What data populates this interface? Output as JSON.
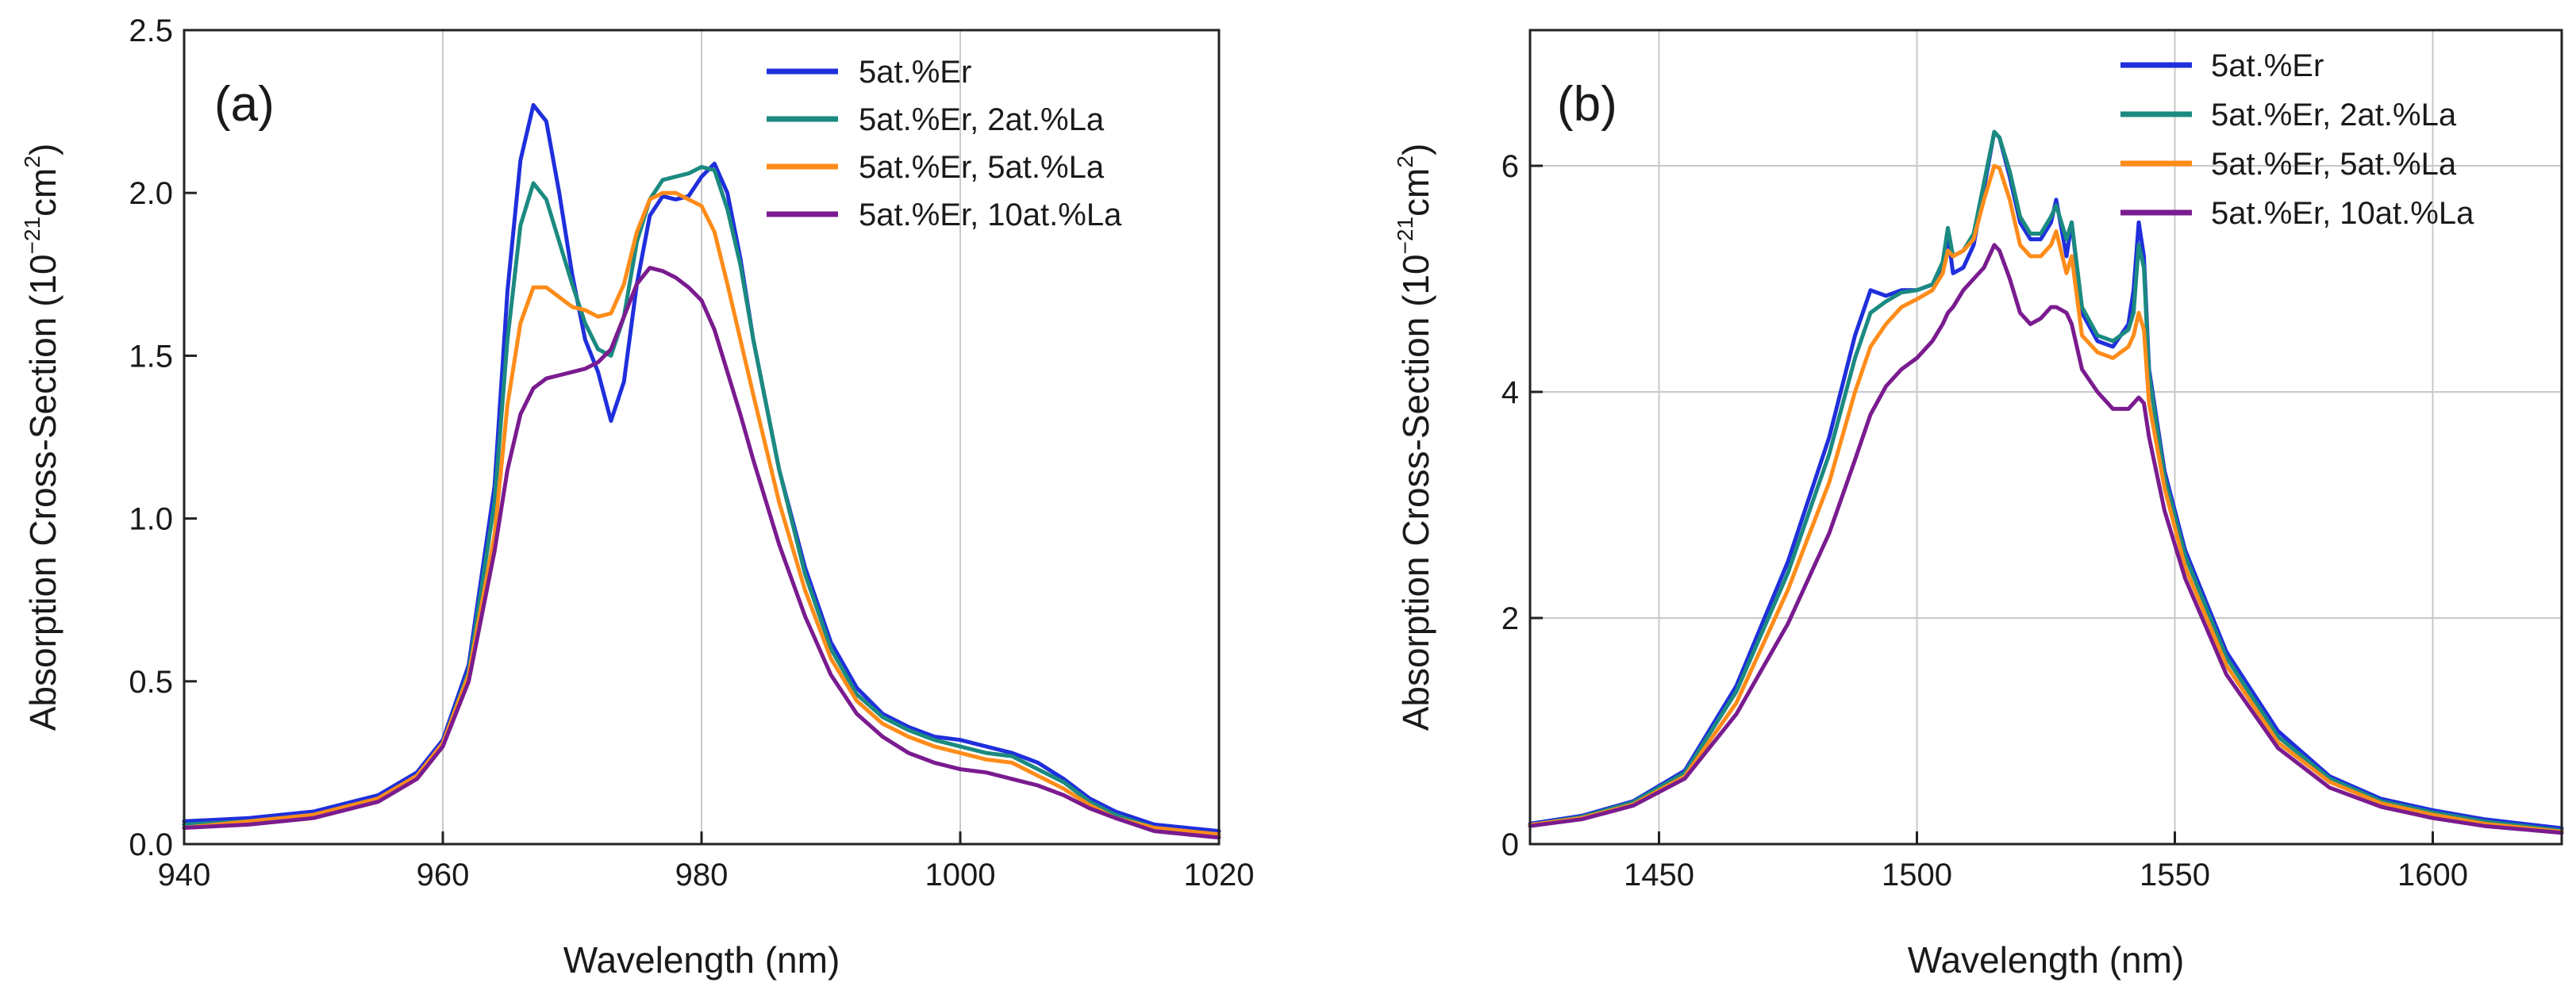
{
  "chart_data": [
    {
      "type": "line",
      "panel_label": "(a)",
      "xlabel": "Wavelength (nm)",
      "ylabel": {
        "prefix": "Absorption Cross-Section (10",
        "exponent": "−21",
        "unit": "cm",
        "unit_exponent": "2",
        "suffix": ")"
      },
      "xlim": [
        940,
        1020
      ],
      "ylim": [
        0,
        2.5
      ],
      "xticks": [
        940,
        960,
        980,
        1000,
        1020
      ],
      "xtick_labels": [
        "940",
        "960",
        "980",
        "1000",
        "1020"
      ],
      "yticks": [
        0,
        0.5,
        1.0,
        1.5,
        2.0,
        2.5
      ],
      "ytick_labels": [
        "0.0",
        "0.5",
        "1.0",
        "1.5",
        "2.0",
        "2.5"
      ],
      "grid": "vertical",
      "legend_position": "top-right",
      "series": [
        {
          "name": "5at.%Er",
          "color": "#1f2fdc",
          "x": [
            940,
            945,
            950,
            955,
            958,
            960,
            962,
            964,
            965,
            966,
            967,
            968,
            969,
            970,
            971,
            972,
            973,
            974,
            975,
            976,
            977,
            978,
            979,
            980,
            981,
            982,
            983,
            984,
            986,
            988,
            990,
            992,
            994,
            996,
            998,
            1000,
            1002,
            1004,
            1006,
            1008,
            1010,
            1012,
            1015,
            1020
          ],
          "y": [
            0.07,
            0.08,
            0.1,
            0.15,
            0.22,
            0.32,
            0.55,
            1.1,
            1.7,
            2.1,
            2.27,
            2.22,
            2.0,
            1.75,
            1.55,
            1.45,
            1.3,
            1.42,
            1.72,
            1.93,
            1.99,
            1.98,
            1.99,
            2.05,
            2.09,
            2.0,
            1.8,
            1.55,
            1.15,
            0.85,
            0.62,
            0.48,
            0.4,
            0.36,
            0.33,
            0.32,
            0.3,
            0.28,
            0.25,
            0.2,
            0.14,
            0.1,
            0.06,
            0.04
          ]
        },
        {
          "name": "5at.%Er, 2at.%La",
          "color": "#1b8a80",
          "x": [
            940,
            945,
            950,
            955,
            958,
            960,
            962,
            964,
            965,
            966,
            967,
            968,
            969,
            970,
            971,
            972,
            973,
            974,
            975,
            976,
            977,
            978,
            979,
            980,
            981,
            982,
            983,
            984,
            986,
            988,
            990,
            992,
            994,
            996,
            998,
            1000,
            1002,
            1004,
            1006,
            1008,
            1010,
            1012,
            1015,
            1020
          ],
          "y": [
            0.06,
            0.07,
            0.09,
            0.14,
            0.21,
            0.31,
            0.53,
            1.05,
            1.55,
            1.9,
            2.03,
            1.98,
            1.85,
            1.72,
            1.6,
            1.52,
            1.5,
            1.62,
            1.85,
            1.98,
            2.04,
            2.05,
            2.06,
            2.08,
            2.07,
            1.95,
            1.78,
            1.55,
            1.15,
            0.83,
            0.6,
            0.46,
            0.39,
            0.35,
            0.32,
            0.3,
            0.28,
            0.27,
            0.23,
            0.19,
            0.13,
            0.09,
            0.05,
            0.03
          ]
        },
        {
          "name": "5at.%Er, 5at.%La",
          "color": "#ff8c1a",
          "x": [
            940,
            945,
            950,
            955,
            958,
            960,
            962,
            964,
            965,
            966,
            967,
            968,
            969,
            970,
            971,
            972,
            973,
            974,
            975,
            976,
            977,
            978,
            979,
            980,
            981,
            982,
            983,
            984,
            986,
            988,
            990,
            992,
            994,
            996,
            998,
            1000,
            1002,
            1004,
            1006,
            1008,
            1010,
            1012,
            1015,
            1020
          ],
          "y": [
            0.05,
            0.07,
            0.09,
            0.14,
            0.21,
            0.31,
            0.52,
            0.95,
            1.35,
            1.6,
            1.71,
            1.71,
            1.68,
            1.65,
            1.64,
            1.62,
            1.63,
            1.72,
            1.88,
            1.98,
            2.0,
            2.0,
            1.98,
            1.96,
            1.88,
            1.72,
            1.55,
            1.38,
            1.05,
            0.78,
            0.57,
            0.44,
            0.37,
            0.33,
            0.3,
            0.28,
            0.26,
            0.25,
            0.21,
            0.17,
            0.12,
            0.08,
            0.05,
            0.03
          ]
        },
        {
          "name": "5at.%Er, 10at.%La",
          "color": "#7a1b8f",
          "x": [
            940,
            945,
            950,
            955,
            958,
            960,
            962,
            964,
            965,
            966,
            967,
            968,
            969,
            970,
            971,
            972,
            973,
            974,
            975,
            976,
            977,
            978,
            979,
            980,
            981,
            982,
            983,
            984,
            986,
            988,
            990,
            992,
            994,
            996,
            998,
            1000,
            1002,
            1004,
            1006,
            1008,
            1010,
            1012,
            1015,
            1020
          ],
          "y": [
            0.05,
            0.06,
            0.08,
            0.13,
            0.2,
            0.3,
            0.5,
            0.9,
            1.15,
            1.32,
            1.4,
            1.43,
            1.44,
            1.45,
            1.46,
            1.48,
            1.52,
            1.62,
            1.72,
            1.77,
            1.76,
            1.74,
            1.71,
            1.67,
            1.58,
            1.45,
            1.32,
            1.18,
            0.92,
            0.7,
            0.52,
            0.4,
            0.33,
            0.28,
            0.25,
            0.23,
            0.22,
            0.2,
            0.18,
            0.15,
            0.11,
            0.08,
            0.04,
            0.02
          ]
        }
      ]
    },
    {
      "type": "line",
      "panel_label": "(b)",
      "xlabel": "Wavelength (nm)",
      "ylabel": {
        "prefix": "Absorption Cross-Section (10",
        "exponent": "−21",
        "unit": "cm",
        "unit_exponent": "2",
        "suffix": ")"
      },
      "xlim": [
        1425,
        1625
      ],
      "ylim": [
        0,
        7.2
      ],
      "xticks": [
        1450,
        1500,
        1550,
        1600
      ],
      "xtick_labels": [
        "1450",
        "1500",
        "1550",
        "1600"
      ],
      "yticks": [
        0,
        2,
        4,
        6
      ],
      "ytick_labels": [
        "0",
        "2",
        "4",
        "6"
      ],
      "grid": "both",
      "legend_position": "top-right",
      "series": [
        {
          "name": "5at.%Er",
          "color": "#1f2fdc",
          "x": [
            1425,
            1435,
            1445,
            1455,
            1465,
            1475,
            1483,
            1488,
            1491,
            1494,
            1497,
            1500,
            1503,
            1505,
            1506,
            1507,
            1509,
            1511,
            1513,
            1515,
            1516,
            1518,
            1520,
            1522,
            1524,
            1526,
            1527,
            1529,
            1530,
            1532,
            1535,
            1538,
            1541,
            1542,
            1543,
            1544,
            1545,
            1548,
            1552,
            1560,
            1570,
            1580,
            1590,
            1600,
            1610,
            1625
          ],
          "y": [
            0.18,
            0.25,
            0.38,
            0.65,
            1.4,
            2.5,
            3.6,
            4.5,
            4.9,
            4.85,
            4.9,
            4.9,
            4.95,
            5.1,
            5.4,
            5.05,
            5.1,
            5.3,
            5.8,
            6.3,
            6.25,
            5.9,
            5.5,
            5.35,
            5.35,
            5.5,
            5.7,
            5.2,
            5.5,
            4.7,
            4.45,
            4.4,
            4.6,
            4.9,
            5.5,
            5.2,
            4.2,
            3.3,
            2.6,
            1.7,
            1.0,
            0.6,
            0.4,
            0.3,
            0.22,
            0.14
          ]
        },
        {
          "name": "5at.%Er, 2at.%La",
          "color": "#1b8a80",
          "x": [
            1425,
            1435,
            1445,
            1455,
            1465,
            1475,
            1483,
            1488,
            1491,
            1494,
            1497,
            1500,
            1503,
            1505,
            1506,
            1507,
            1509,
            1511,
            1513,
            1515,
            1516,
            1518,
            1520,
            1522,
            1524,
            1526,
            1527,
            1529,
            1530,
            1532,
            1535,
            1538,
            1541,
            1542,
            1543,
            1544,
            1545,
            1548,
            1552,
            1560,
            1570,
            1580,
            1590,
            1600,
            1610,
            1625
          ],
          "y": [
            0.17,
            0.24,
            0.37,
            0.63,
            1.35,
            2.4,
            3.45,
            4.3,
            4.7,
            4.8,
            4.88,
            4.9,
            4.95,
            5.15,
            5.45,
            5.2,
            5.25,
            5.4,
            5.85,
            6.3,
            6.25,
            5.95,
            5.55,
            5.4,
            5.4,
            5.55,
            5.65,
            5.35,
            5.5,
            4.75,
            4.5,
            4.45,
            4.55,
            4.7,
            5.3,
            5.1,
            4.15,
            3.25,
            2.55,
            1.65,
            0.95,
            0.58,
            0.38,
            0.28,
            0.2,
            0.12
          ]
        },
        {
          "name": "5at.%Er, 5at.%La",
          "color": "#ff8c1a",
          "x": [
            1425,
            1435,
            1445,
            1455,
            1465,
            1475,
            1483,
            1488,
            1491,
            1494,
            1497,
            1500,
            1503,
            1505,
            1506,
            1507,
            1509,
            1511,
            1513,
            1515,
            1516,
            1518,
            1520,
            1522,
            1524,
            1526,
            1527,
            1529,
            1530,
            1532,
            1535,
            1538,
            1541,
            1542,
            1543,
            1544,
            1545,
            1548,
            1552,
            1560,
            1570,
            1580,
            1590,
            1600,
            1610,
            1625
          ],
          "y": [
            0.17,
            0.23,
            0.35,
            0.6,
            1.25,
            2.25,
            3.2,
            4.0,
            4.4,
            4.6,
            4.75,
            4.82,
            4.9,
            5.05,
            5.25,
            5.2,
            5.25,
            5.35,
            5.7,
            6.0,
            5.98,
            5.7,
            5.3,
            5.2,
            5.2,
            5.3,
            5.42,
            5.05,
            5.2,
            4.5,
            4.35,
            4.3,
            4.4,
            4.5,
            4.7,
            4.55,
            3.9,
            3.15,
            2.45,
            1.58,
            0.9,
            0.55,
            0.36,
            0.26,
            0.18,
            0.11
          ]
        },
        {
          "name": "5at.%Er, 10at.%La",
          "color": "#7a1b8f",
          "x": [
            1425,
            1435,
            1445,
            1455,
            1465,
            1475,
            1483,
            1488,
            1491,
            1494,
            1497,
            1500,
            1503,
            1505,
            1506,
            1507,
            1509,
            1511,
            1513,
            1515,
            1516,
            1518,
            1520,
            1522,
            1524,
            1526,
            1527,
            1529,
            1530,
            1532,
            1535,
            1538,
            1541,
            1542,
            1543,
            1544,
            1545,
            1548,
            1552,
            1560,
            1570,
            1580,
            1590,
            1600,
            1610,
            1625
          ],
          "y": [
            0.16,
            0.22,
            0.34,
            0.58,
            1.15,
            1.95,
            2.75,
            3.4,
            3.8,
            4.05,
            4.2,
            4.3,
            4.45,
            4.6,
            4.7,
            4.75,
            4.9,
            5.0,
            5.1,
            5.3,
            5.25,
            5.0,
            4.7,
            4.6,
            4.65,
            4.75,
            4.75,
            4.7,
            4.6,
            4.2,
            4.0,
            3.85,
            3.85,
            3.9,
            3.95,
            3.9,
            3.6,
            2.95,
            2.35,
            1.5,
            0.85,
            0.5,
            0.33,
            0.23,
            0.16,
            0.1
          ]
        }
      ]
    }
  ]
}
